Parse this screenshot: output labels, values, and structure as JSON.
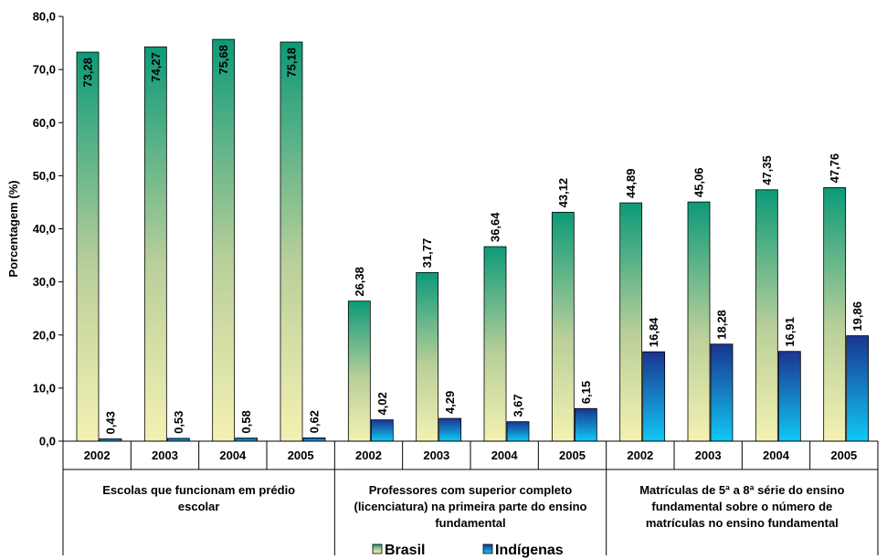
{
  "chart_data": {
    "type": "bar",
    "ylabel": "Porcentagem (%)",
    "ylim": [
      0,
      80
    ],
    "yticks": [
      "0,0",
      "10,0",
      "20,0",
      "30,0",
      "40,0",
      "50,0",
      "60,0",
      "70,0",
      "80,0"
    ],
    "grid": false,
    "legend_position": "bottom",
    "groups": [
      {
        "label": "Escolas que funcionam em prédio escolar",
        "label_lines": [
          "Escolas que funcionam em prédio",
          "escolar"
        ]
      },
      {
        "label": "Professores com superior completo (licenciatura) na primeira parte do ensino fundamental",
        "label_lines": [
          "Professores com superior completo",
          "(licenciatura) na primeira parte do ensino",
          "fundamental"
        ]
      },
      {
        "label": "Matrículas de 5ª a 8ª série do ensino fundamental sobre o número de matrículas no ensino fundamental",
        "label_lines": [
          "Matrículas de 5ª a 8ª série do ensino",
          "fundamental sobre o número de",
          "matrículas no ensino fundamental"
        ]
      }
    ],
    "categories": [
      "2002",
      "2003",
      "2004",
      "2005",
      "2002",
      "2003",
      "2004",
      "2005",
      "2002",
      "2003",
      "2004",
      "2005"
    ],
    "series": [
      {
        "name": "Brasil",
        "values": [
          73.28,
          74.27,
          75.68,
          75.18,
          26.38,
          31.77,
          36.64,
          43.12,
          44.89,
          45.06,
          47.35,
          47.76
        ],
        "labels": [
          "73,28",
          "74,27",
          "75,68",
          "75,18",
          "26,38",
          "31,77",
          "36,64",
          "43,12",
          "44,89",
          "45,06",
          "47,35",
          "47,76"
        ]
      },
      {
        "name": "Indígenas",
        "values": [
          0.43,
          0.53,
          0.58,
          0.62,
          4.02,
          4.29,
          3.67,
          6.15,
          16.84,
          18.28,
          16.91,
          19.86
        ],
        "labels": [
          "0,43",
          "0,53",
          "0,58",
          "0,62",
          "4,02",
          "4,29",
          "3,67",
          "6,15",
          "16,84",
          "18,28",
          "16,91",
          "19,86"
        ]
      }
    ]
  }
}
